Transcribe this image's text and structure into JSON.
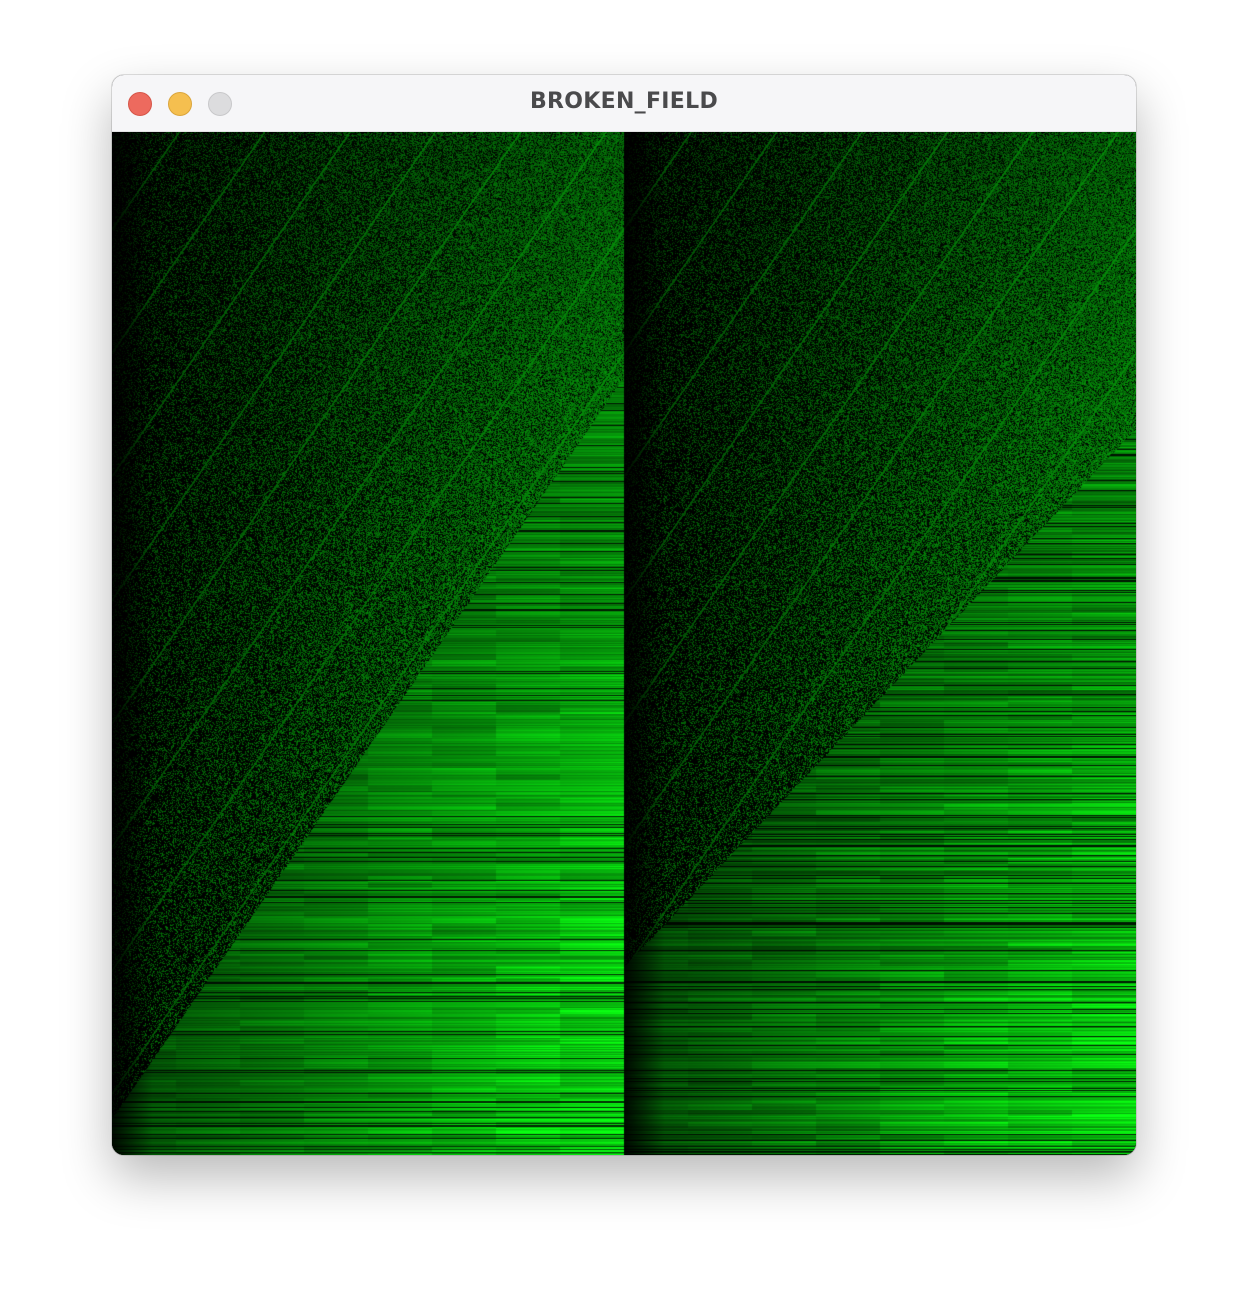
{
  "window": {
    "title": "BROKEN_FIELD",
    "traffic_lights": [
      {
        "name": "close",
        "color": "#ed6a5e"
      },
      {
        "name": "minimize",
        "color": "#f5bf4f"
      },
      {
        "name": "zoom",
        "color": "#dcdcde"
      }
    ]
  },
  "visualization": {
    "palette": {
      "background": "#000000",
      "base_green": "#00ff22"
    },
    "panels": 2
  }
}
